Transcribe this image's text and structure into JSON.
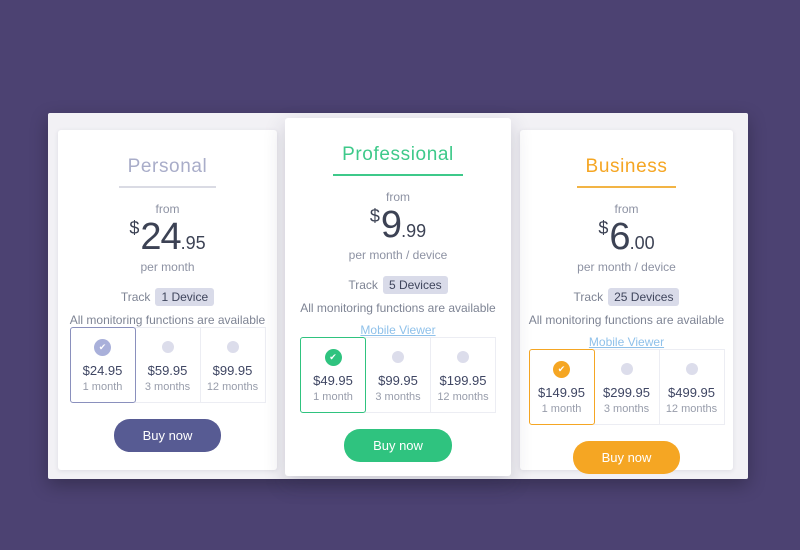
{
  "page": {
    "background": "#4c4272",
    "panel_background": "#f2f1f5"
  },
  "icons": {
    "check": "✔"
  },
  "cards": [
    {
      "title": "Personal",
      "colors": {
        "title": "#a9adc9",
        "underline": "#dadbe4",
        "check": "#a9b0da",
        "selected_border": "#8a90bd",
        "btn": "#575b93"
      },
      "from_label": "from",
      "currency_symbol": "$",
      "price_whole": "24",
      "price_fraction": ".95",
      "billing_period": "per month",
      "track_label": "Track",
      "track_badge": "1 Device",
      "features_text": "All monitoring functions are available",
      "options": [
        {
          "price": "$24.95",
          "duration": "1 month",
          "selected": true
        },
        {
          "price": "$59.95",
          "duration": "3 months",
          "selected": false
        },
        {
          "price": "$99.95",
          "duration": "12 months",
          "selected": false
        }
      ],
      "buy_button_label": "Buy now"
    },
    {
      "title": "Professional",
      "colors": {
        "title": "#3ec98a",
        "underline": "#3ec98a",
        "check": "#2fc37f",
        "selected_border": "#2fc37f",
        "btn": "#2fc37f"
      },
      "from_label": "from",
      "currency_symbol": "$",
      "price_whole": "9",
      "price_fraction": ".99",
      "billing_period": "per month / device",
      "track_label": "Track",
      "track_badge": "5 Devices",
      "features_text": "All monitoring functions are available",
      "mobile_viewer_link": "Mobile Viewer",
      "options": [
        {
          "price": "$49.95",
          "duration": "1 month",
          "selected": true
        },
        {
          "price": "$99.95",
          "duration": "3 months",
          "selected": false
        },
        {
          "price": "$199.95",
          "duration": "12 months",
          "selected": false
        }
      ],
      "buy_button_label": "Buy now"
    },
    {
      "title": "Business",
      "colors": {
        "title": "#f5a623",
        "underline": "#f2b445",
        "check": "#f5a623",
        "selected_border": "#f5a623",
        "btn": "#f5a623"
      },
      "from_label": "from",
      "currency_symbol": "$",
      "price_whole": "6",
      "price_fraction": ".00",
      "billing_period": "per month / device",
      "track_label": "Track",
      "track_badge": "25 Devices",
      "features_text": "All monitoring functions are available",
      "mobile_viewer_link": "Mobile Viewer",
      "options": [
        {
          "price": "$149.95",
          "duration": "1 month",
          "selected": true
        },
        {
          "price": "$299.95",
          "duration": "3 months",
          "selected": false
        },
        {
          "price": "$499.95",
          "duration": "12 months",
          "selected": false
        }
      ],
      "buy_button_label": "Buy now"
    }
  ]
}
